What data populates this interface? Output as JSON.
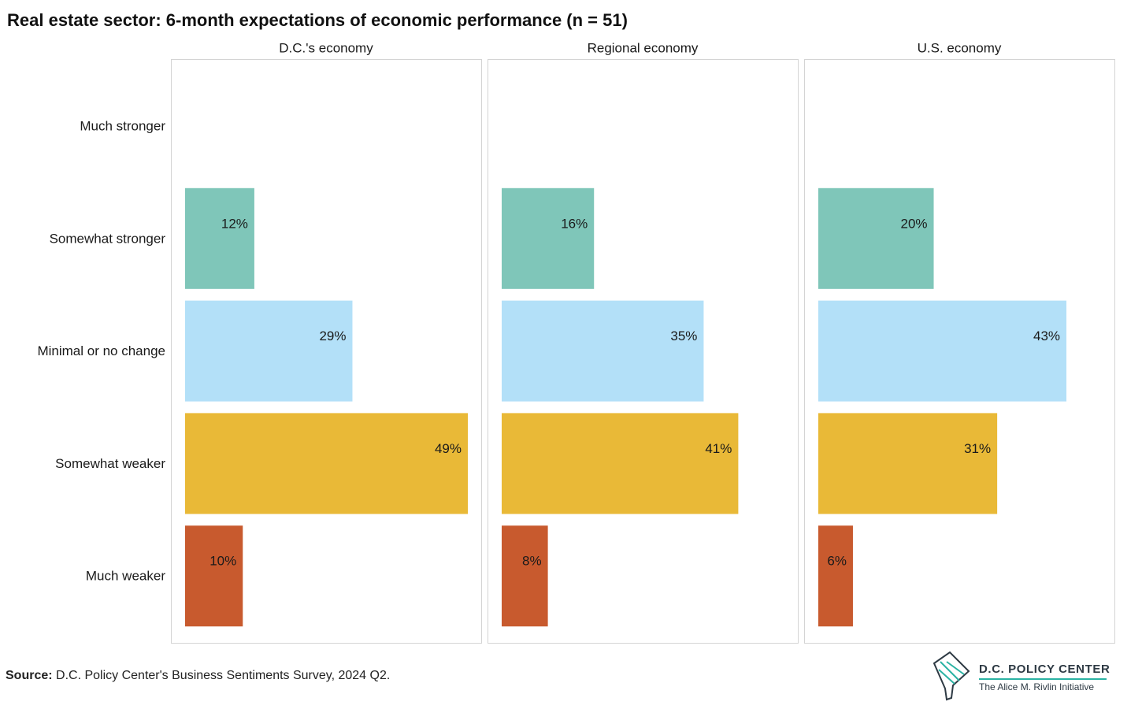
{
  "title": "Real estate sector: 6-month expectations of economic performance (n = 51)",
  "source": {
    "label": "Source:",
    "text": "D.C. Policy Center's Business Sentiments Survey, 2024 Q2."
  },
  "logo": {
    "title": "D.C. POLICY CENTER",
    "subtitle": "The Alice M. Rivlin Initiative"
  },
  "colors": {
    "Somewhat stronger": "#7fc6b9",
    "Minimal or no change": "#b3e0f8",
    "Somewhat weaker": "#e9b937",
    "Much weaker": "#c85a2e"
  },
  "chart_data": {
    "type": "bar",
    "orientation": "horizontal",
    "categories": [
      "Much stronger",
      "Somewhat stronger",
      "Minimal or no change",
      "Somewhat weaker",
      "Much weaker"
    ],
    "panels": [
      {
        "name": "D.C.'s economy",
        "values": [
          null,
          12,
          29,
          49,
          10
        ],
        "labels": [
          "",
          "12%",
          "29%",
          "49%",
          "10%"
        ]
      },
      {
        "name": "Regional economy",
        "values": [
          null,
          16,
          35,
          41,
          8
        ],
        "labels": [
          "",
          "16%",
          "35%",
          "41%",
          "8%"
        ]
      },
      {
        "name": "U.S. economy",
        "values": [
          null,
          20,
          43,
          31,
          6
        ],
        "labels": [
          "",
          "20%",
          "43%",
          "31%",
          "6%"
        ]
      }
    ],
    "xlim": [
      0,
      49
    ],
    "grid": false,
    "legend": "none"
  }
}
